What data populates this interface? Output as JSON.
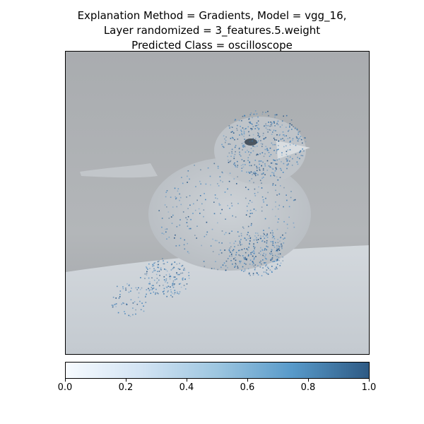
{
  "title": {
    "line1": "Explanation Method = Gradients, Model = vgg_16,",
    "line2": "Layer randomized = 3_features.5.weight",
    "line3": "Predicted Class = oscilloscope"
  },
  "chart_data": {
    "type": "heatmap",
    "description": "",
    "colormap": "Blues",
    "colorbar": {
      "range": [
        0.0,
        1.0
      ],
      "ticks": [
        0.0,
        0.2,
        0.4,
        0.6,
        0.8,
        1.0
      ],
      "tick_labels": [
        "0.0",
        "0.2",
        "0.4",
        "0.6",
        "0.8",
        "1.0"
      ],
      "orientation": "horizontal",
      "placement": "bottom"
    },
    "axes": {
      "xticks": [],
      "yticks": []
    }
  }
}
